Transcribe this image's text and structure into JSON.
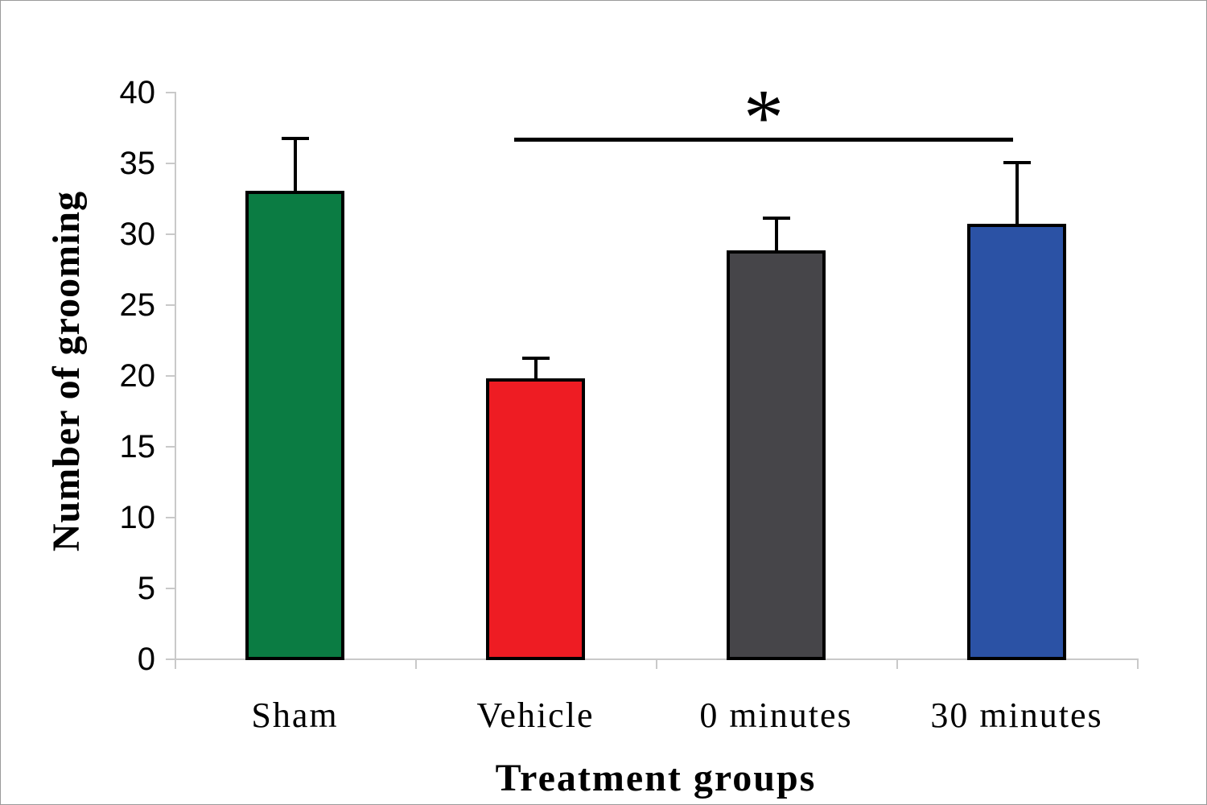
{
  "figure": {
    "background_color": "#ffffff",
    "border_color": "#9b9b9b"
  },
  "chart_data": {
    "type": "bar",
    "title": "",
    "xlabel": "Treatment groups",
    "ylabel": "Number of grooming",
    "categories": [
      "Sham",
      "Vehicle",
      "0 minutes",
      "30 minutes"
    ],
    "values": [
      33.0,
      19.8,
      28.8,
      30.7
    ],
    "errors_upper": [
      3.7,
      1.4,
      2.3,
      4.3
    ],
    "bar_colors": [
      "#0b7c43",
      "#ee1c23",
      "#464549",
      "#2b52a5"
    ],
    "bar_outline_color": "#000000",
    "error_bar_color": "#000000",
    "ylim": [
      0,
      40
    ],
    "yticks": [
      0,
      5,
      10,
      15,
      20,
      25,
      30,
      35,
      40
    ],
    "grid": false,
    "legend": "none",
    "axis_color": "#c9c9c9",
    "significance": {
      "symbol": "*",
      "from_category": "Vehicle",
      "to_category": "30 minutes",
      "from_index": 1,
      "to_index": 3,
      "line_y_value": 36.6
    }
  }
}
